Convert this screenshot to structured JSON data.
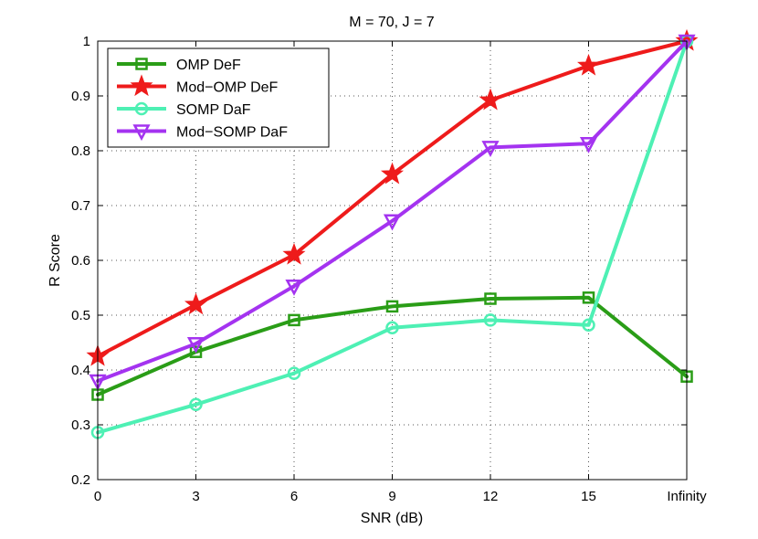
{
  "chart_data": {
    "type": "line",
    "title": "M = 70, J = 7",
    "xlabel": "SNR (dB)",
    "ylabel": "R Score",
    "categories": [
      "0",
      "3",
      "6",
      "9",
      "12",
      "15",
      "Infinity"
    ],
    "ylim": [
      0.2,
      1.0
    ],
    "yticks": [
      "0.2",
      "0.3",
      "0.4",
      "0.5",
      "0.6",
      "0.7",
      "0.8",
      "0.9",
      "1"
    ],
    "grid": true,
    "legend_position": "top-left",
    "series": [
      {
        "name": "OMP DeF",
        "color": "#2a9d17",
        "marker": "square",
        "values": [
          0.355,
          0.433,
          0.491,
          0.516,
          0.53,
          0.532,
          0.388
        ]
      },
      {
        "name": "Mod−OMP DeF",
        "color": "#ee1b1b",
        "marker": "star",
        "values": [
          0.425,
          0.519,
          0.61,
          0.757,
          0.892,
          0.955,
          1.0
        ]
      },
      {
        "name": "SOMP DaF",
        "color": "#4ef0b4",
        "marker": "circle",
        "values": [
          0.286,
          0.337,
          0.394,
          0.477,
          0.491,
          0.482,
          1.0
        ]
      },
      {
        "name": "Mod−SOMP DaF",
        "color": "#a433f0",
        "marker": "triangle-down",
        "values": [
          0.38,
          0.448,
          0.553,
          0.672,
          0.806,
          0.813,
          1.0
        ]
      }
    ]
  }
}
